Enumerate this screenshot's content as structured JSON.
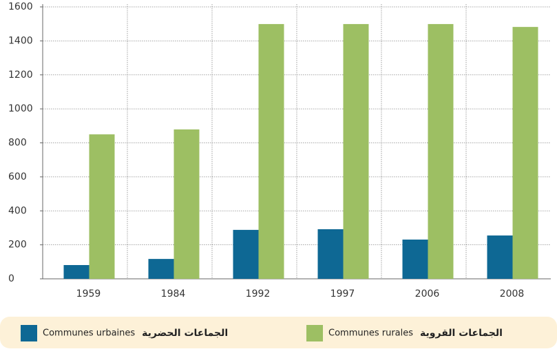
{
  "chart_data": {
    "type": "bar",
    "categories": [
      "1959",
      "1984",
      "1992",
      "1997",
      "2006",
      "2008"
    ],
    "series": [
      {
        "name": "Communes urbaines",
        "name_ar": "الجماعات الحضرية",
        "color": "#0e6894",
        "values": [
          81,
          117,
          288,
          292,
          231,
          255
        ]
      },
      {
        "name": "Communes rurales",
        "name_ar": "الجماعات القروية",
        "color": "#9dbf63",
        "values": [
          850,
          879,
          1499,
          1499,
          1499,
          1482
        ]
      }
    ],
    "ylim": [
      0,
      1600
    ],
    "yticks": [
      0,
      200,
      400,
      600,
      800,
      1000,
      1200,
      1400,
      1600
    ],
    "grid": true
  }
}
